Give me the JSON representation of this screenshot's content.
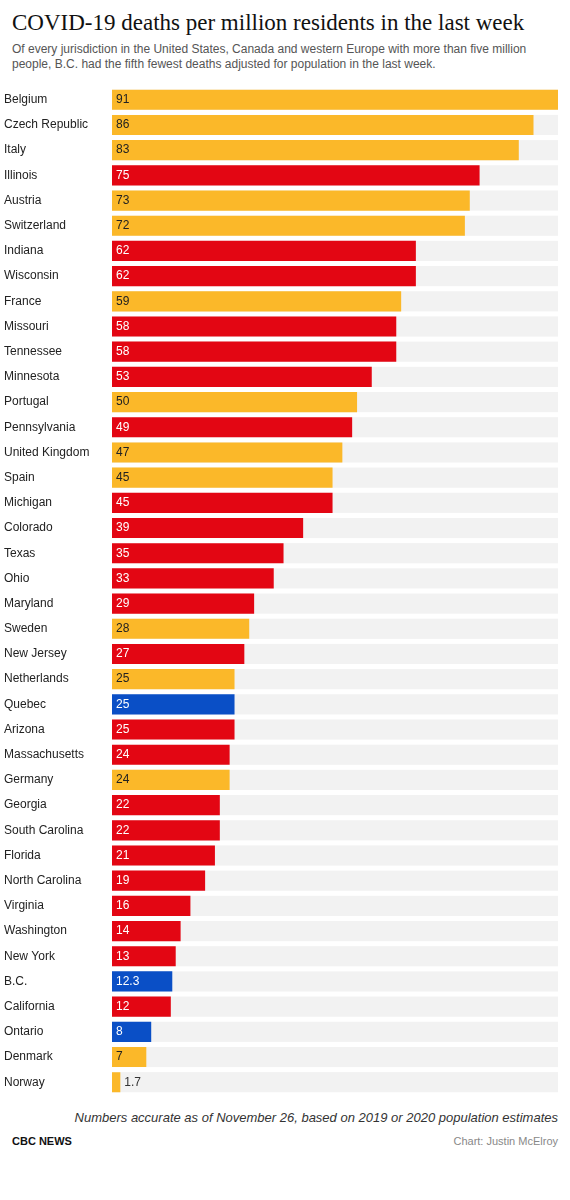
{
  "chart_data": {
    "type": "bar",
    "orientation": "horizontal",
    "title": "COVID-19 deaths per million residents in the last week",
    "subtitle": "Of every jurisdiction in the United States, Canada and western Europe with more than five million people, B.C. had the fifth fewest deaths adjusted for population in the last week.",
    "footnote": "Numbers accurate as of November 26, based on 2019 or 2020 population estimates",
    "source": "CBC NEWS",
    "credit": "Chart: Justin McElroy",
    "categories": [
      "Belgium",
      "Czech Republic",
      "Italy",
      "Illinois",
      "Austria",
      "Switzerland",
      "Indiana",
      "Wisconsin",
      "France",
      "Missouri",
      "Tennessee",
      "Minnesota",
      "Portugal",
      "Pennsylvania",
      "United Kingdom",
      "Spain",
      "Michigan",
      "Colorado",
      "Texas",
      "Ohio",
      "Maryland",
      "Sweden",
      "New Jersey",
      "Netherlands",
      "Quebec",
      "Arizona",
      "Massachusetts",
      "Germany",
      "Georgia",
      "South Carolina",
      "Florida",
      "North Carolina",
      "Virginia",
      "Washington",
      "New York",
      "B.C.",
      "California",
      "Ontario",
      "Denmark",
      "Norway"
    ],
    "values": [
      91,
      86,
      83,
      75,
      73,
      72,
      62,
      62,
      59,
      58,
      58,
      53,
      50,
      49,
      47,
      45,
      45,
      39,
      35,
      33,
      29,
      28,
      27,
      25,
      25,
      25,
      24,
      24,
      22,
      22,
      21,
      19,
      16,
      14,
      13,
      12.3,
      12,
      8,
      7,
      1.7
    ],
    "colors": [
      "#fbb829",
      "#fbb829",
      "#fbb829",
      "#e30613",
      "#fbb829",
      "#fbb829",
      "#e30613",
      "#e30613",
      "#fbb829",
      "#e30613",
      "#e30613",
      "#e30613",
      "#fbb829",
      "#e30613",
      "#fbb829",
      "#fbb829",
      "#e30613",
      "#e30613",
      "#e30613",
      "#e30613",
      "#e30613",
      "#fbb829",
      "#e30613",
      "#fbb829",
      "#0a4fc6",
      "#e30613",
      "#e30613",
      "#fbb829",
      "#e30613",
      "#e30613",
      "#e30613",
      "#e30613",
      "#e30613",
      "#e30613",
      "#e30613",
      "#0a4fc6",
      "#e30613",
      "#0a4fc6",
      "#fbb829",
      "#fbb829"
    ],
    "xlim": [
      0,
      91
    ],
    "tick_labels": "y",
    "grid": false,
    "data_labels": true
  }
}
